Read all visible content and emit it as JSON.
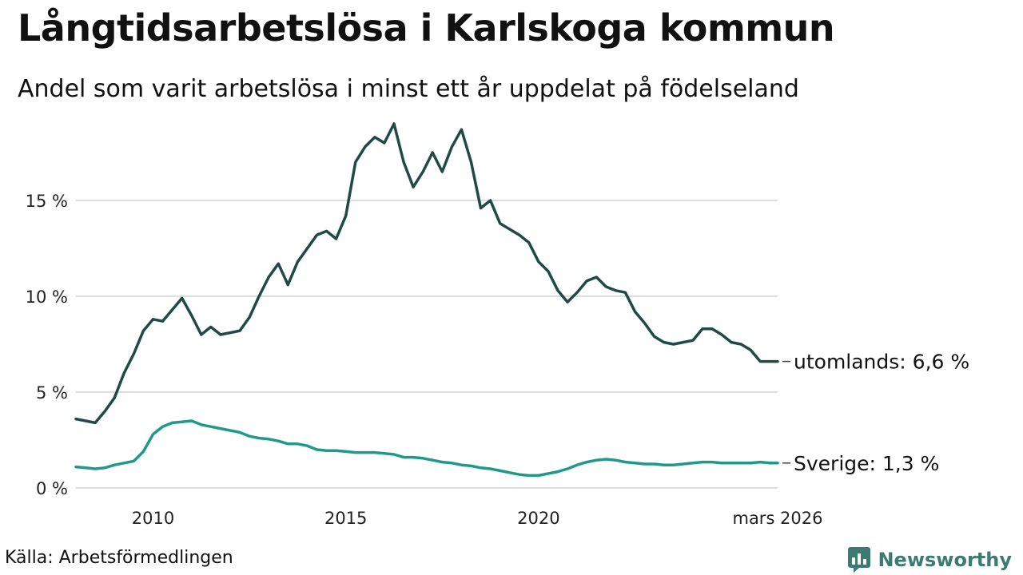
{
  "header": {
    "title": "Långtidsarbetslösa i Karlskoga kommun",
    "subtitle": "Andel som varit arbetslösa i minst ett år uppdelat på födelseland"
  },
  "footer": {
    "source": "Källa: Arbetsförmedlingen",
    "brand": "Newsworthy"
  },
  "colors": {
    "utomlands": "#1f4a45",
    "sverige": "#21998a",
    "grid": "#dddddd",
    "brand": "#3d7a72"
  },
  "chart_data": {
    "type": "line",
    "title": "Långtidsarbetslösa i Karlskoga kommun",
    "subtitle": "Andel som varit arbetslösa i minst ett år uppdelat på födelseland",
    "xlabel": "",
    "ylabel": "",
    "xlim": [
      2008.0,
      2026.2
    ],
    "ylim": [
      0,
      19
    ],
    "grid": true,
    "y_ticks": [
      {
        "value": 0,
        "label": "0 %"
      },
      {
        "value": 5,
        "label": "5 %"
      },
      {
        "value": 10,
        "label": "10 %"
      },
      {
        "value": 15,
        "label": "15 %"
      }
    ],
    "x_ticks": [
      {
        "value": 2010,
        "label": "2010"
      },
      {
        "value": 2015,
        "label": "2015"
      },
      {
        "value": 2020,
        "label": "2020"
      },
      {
        "value": 2026.2,
        "label": "mars 2026"
      }
    ],
    "series": [
      {
        "name": "utomlands",
        "end_label": "utomlands: 6,6 %",
        "color": "#1f4a45",
        "x": [
          2008.0,
          2008.25,
          2008.5,
          2008.75,
          2009.0,
          2009.25,
          2009.5,
          2009.75,
          2010.0,
          2010.25,
          2010.5,
          2010.75,
          2011.0,
          2011.25,
          2011.5,
          2011.75,
          2012.0,
          2012.25,
          2012.5,
          2012.75,
          2013.0,
          2013.25,
          2013.5,
          2013.75,
          2014.0,
          2014.25,
          2014.5,
          2014.75,
          2015.0,
          2015.25,
          2015.5,
          2015.75,
          2016.0,
          2016.25,
          2016.5,
          2016.75,
          2017.0,
          2017.25,
          2017.5,
          2017.75,
          2018.0,
          2018.25,
          2018.5,
          2018.75,
          2019.0,
          2019.25,
          2019.5,
          2019.75,
          2020.0,
          2020.25,
          2020.5,
          2020.75,
          2021.0,
          2021.25,
          2021.5,
          2021.75,
          2022.0,
          2022.25,
          2022.5,
          2022.75,
          2023.0,
          2023.25,
          2023.5,
          2023.75,
          2024.0,
          2024.25,
          2024.5,
          2024.75,
          2025.0,
          2025.25,
          2025.5,
          2025.75,
          2026.0,
          2026.2
        ],
        "values": [
          3.6,
          3.5,
          3.4,
          4.0,
          4.7,
          6.0,
          7.0,
          8.2,
          8.8,
          8.7,
          9.3,
          9.9,
          9.0,
          8.0,
          8.4,
          8.0,
          8.1,
          8.2,
          8.9,
          10.0,
          11.0,
          11.7,
          10.6,
          11.8,
          12.5,
          13.2,
          13.4,
          13.0,
          14.2,
          17.0,
          17.8,
          18.3,
          18.0,
          19.0,
          17.0,
          15.7,
          16.5,
          17.5,
          16.5,
          17.8,
          18.7,
          17.0,
          14.6,
          15.0,
          13.8,
          13.5,
          13.2,
          12.8,
          11.8,
          11.3,
          10.3,
          9.7,
          10.2,
          10.8,
          11.0,
          10.5,
          10.3,
          10.2,
          9.2,
          8.6,
          7.9,
          7.6,
          7.5,
          7.6,
          7.7,
          8.3,
          8.3,
          8.0,
          7.6,
          7.5,
          7.2,
          6.6,
          6.6,
          6.6
        ]
      },
      {
        "name": "Sverige",
        "end_label": "Sverige: 1,3 %",
        "color": "#21998a",
        "x": [
          2008.0,
          2008.25,
          2008.5,
          2008.75,
          2009.0,
          2009.25,
          2009.5,
          2009.75,
          2010.0,
          2010.25,
          2010.5,
          2010.75,
          2011.0,
          2011.25,
          2011.5,
          2011.75,
          2012.0,
          2012.25,
          2012.5,
          2012.75,
          2013.0,
          2013.25,
          2013.5,
          2013.75,
          2014.0,
          2014.25,
          2014.5,
          2014.75,
          2015.0,
          2015.25,
          2015.5,
          2015.75,
          2016.0,
          2016.25,
          2016.5,
          2016.75,
          2017.0,
          2017.25,
          2017.5,
          2017.75,
          2018.0,
          2018.25,
          2018.5,
          2018.75,
          2019.0,
          2019.25,
          2019.5,
          2019.75,
          2020.0,
          2020.25,
          2020.5,
          2020.75,
          2021.0,
          2021.25,
          2021.5,
          2021.75,
          2022.0,
          2022.25,
          2022.5,
          2022.75,
          2023.0,
          2023.25,
          2023.5,
          2023.75,
          2024.0,
          2024.25,
          2024.5,
          2024.75,
          2025.0,
          2025.25,
          2025.5,
          2025.75,
          2026.0,
          2026.2
        ],
        "values": [
          1.1,
          1.05,
          1.0,
          1.05,
          1.2,
          1.3,
          1.4,
          1.9,
          2.8,
          3.2,
          3.4,
          3.45,
          3.5,
          3.3,
          3.2,
          3.1,
          3.0,
          2.9,
          2.7,
          2.6,
          2.55,
          2.45,
          2.3,
          2.3,
          2.2,
          2.0,
          1.95,
          1.95,
          1.9,
          1.85,
          1.85,
          1.85,
          1.8,
          1.75,
          1.6,
          1.6,
          1.55,
          1.45,
          1.35,
          1.3,
          1.2,
          1.15,
          1.05,
          1.0,
          0.9,
          0.8,
          0.7,
          0.65,
          0.65,
          0.75,
          0.85,
          1.0,
          1.2,
          1.35,
          1.45,
          1.5,
          1.45,
          1.35,
          1.3,
          1.25,
          1.25,
          1.2,
          1.2,
          1.25,
          1.3,
          1.35,
          1.35,
          1.3,
          1.3,
          1.3,
          1.3,
          1.35,
          1.3,
          1.3
        ]
      }
    ]
  }
}
